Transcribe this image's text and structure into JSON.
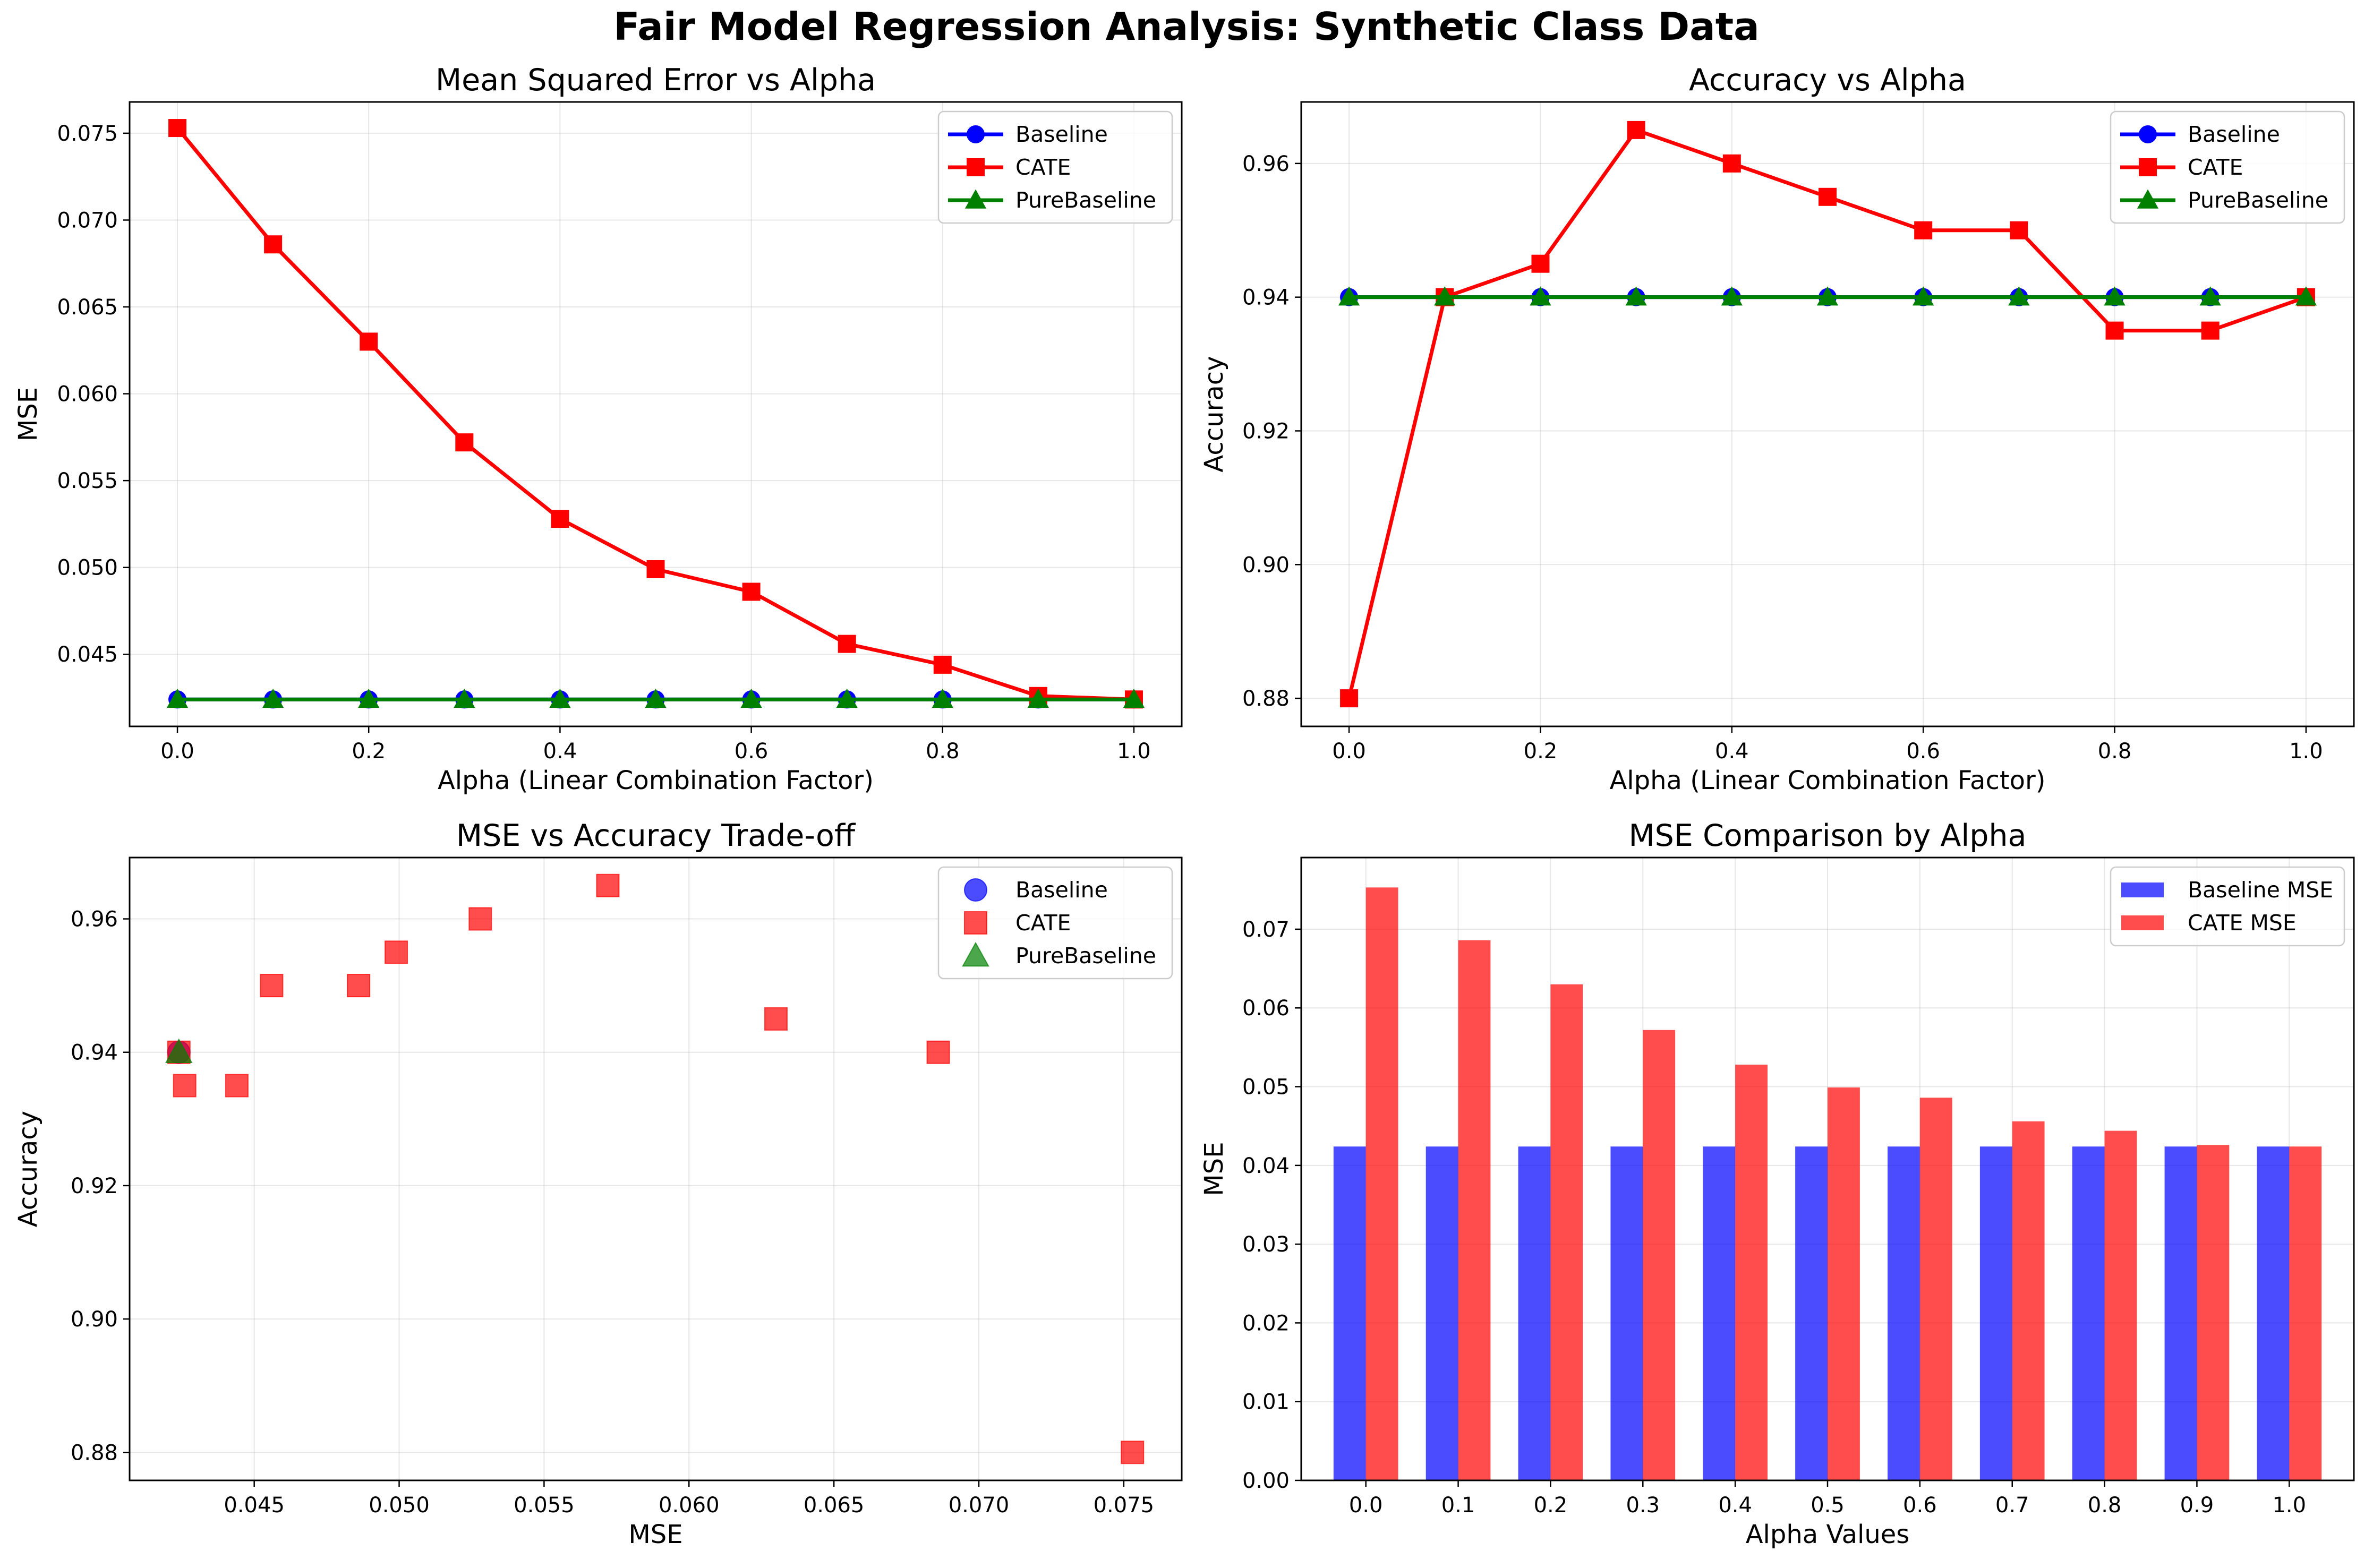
{
  "title": "Fair Model Regression Analysis: Synthetic Class Data",
  "colors": {
    "baseline": "#0000ff",
    "cate": "#ff0000",
    "pure": "#008000"
  },
  "chart_data": [
    {
      "type": "line",
      "title": "Mean Squared Error vs Alpha",
      "xlabel": "Alpha (Linear Combination Factor)",
      "ylabel": "MSE",
      "x": [
        0.0,
        0.1,
        0.2,
        0.3,
        0.4,
        0.5,
        0.6,
        0.7,
        0.8,
        0.9,
        1.0
      ],
      "xlim": [
        -0.05,
        1.05
      ],
      "ylim": [
        0.04085,
        0.0768
      ],
      "xticks": [
        "0.0",
        "0.2",
        "0.4",
        "0.6",
        "0.8",
        "1.0"
      ],
      "yticks": [
        "0.045",
        "0.050",
        "0.055",
        "0.060",
        "0.065",
        "0.070",
        "0.075"
      ],
      "grid": true,
      "legend": "top-right",
      "series": [
        {
          "name": "Baseline",
          "marker": "circle",
          "values": [
            0.0424,
            0.0424,
            0.0424,
            0.0424,
            0.0424,
            0.0424,
            0.0424,
            0.0424,
            0.0424,
            0.0424,
            0.0424
          ]
        },
        {
          "name": "CATE",
          "marker": "square",
          "values": [
            0.0753,
            0.0686,
            0.063,
            0.0572,
            0.0528,
            0.0499,
            0.0486,
            0.0456,
            0.0444,
            0.0426,
            0.0424
          ]
        },
        {
          "name": "PureBaseline",
          "marker": "triangle",
          "values": [
            0.0424,
            0.0424,
            0.0424,
            0.0424,
            0.0424,
            0.0424,
            0.0424,
            0.0424,
            0.0424,
            0.0424,
            0.0424
          ]
        }
      ]
    },
    {
      "type": "line",
      "title": "Accuracy vs Alpha",
      "xlabel": "Alpha (Linear Combination Factor)",
      "ylabel": "Accuracy",
      "x": [
        0.0,
        0.1,
        0.2,
        0.3,
        0.4,
        0.5,
        0.6,
        0.7,
        0.8,
        0.9,
        1.0
      ],
      "xlim": [
        -0.05,
        1.05
      ],
      "ylim": [
        0.8758,
        0.9692
      ],
      "xticks": [
        "0.0",
        "0.2",
        "0.4",
        "0.6",
        "0.8",
        "1.0"
      ],
      "yticks": [
        "0.88",
        "0.90",
        "0.92",
        "0.94",
        "0.96"
      ],
      "grid": true,
      "legend": "top-right",
      "series": [
        {
          "name": "Baseline",
          "marker": "circle",
          "values": [
            0.94,
            0.94,
            0.94,
            0.94,
            0.94,
            0.94,
            0.94,
            0.94,
            0.94,
            0.94,
            0.94
          ]
        },
        {
          "name": "CATE",
          "marker": "square",
          "values": [
            0.88,
            0.94,
            0.945,
            0.965,
            0.96,
            0.955,
            0.95,
            0.95,
            0.935,
            0.935,
            0.94
          ]
        },
        {
          "name": "PureBaseline",
          "marker": "triangle",
          "values": [
            0.94,
            0.94,
            0.94,
            0.94,
            0.94,
            0.94,
            0.94,
            0.94,
            0.94,
            0.94,
            0.94
          ]
        }
      ]
    },
    {
      "type": "scatter",
      "title": "MSE vs Accuracy Trade-off",
      "xlabel": "MSE",
      "ylabel": "Accuracy",
      "xlim": [
        0.0407,
        0.077
      ],
      "ylim": [
        0.8758,
        0.9692
      ],
      "xticks": [
        "0.045",
        "0.050",
        "0.055",
        "0.060",
        "0.065",
        "0.070",
        "0.075"
      ],
      "yticks": [
        "0.88",
        "0.90",
        "0.92",
        "0.94",
        "0.96"
      ],
      "grid": true,
      "legend": "top-right",
      "series": [
        {
          "name": "Baseline",
          "marker": "circle",
          "points": [
            [
              0.0424,
              0.94
            ]
          ]
        },
        {
          "name": "CATE",
          "marker": "square",
          "points": [
            [
              0.0753,
              0.88
            ],
            [
              0.0686,
              0.94
            ],
            [
              0.063,
              0.945
            ],
            [
              0.0572,
              0.965
            ],
            [
              0.0528,
              0.96
            ],
            [
              0.0499,
              0.955
            ],
            [
              0.0486,
              0.95
            ],
            [
              0.0456,
              0.95
            ],
            [
              0.0444,
              0.935
            ],
            [
              0.0426,
              0.935
            ],
            [
              0.0424,
              0.94
            ]
          ]
        },
        {
          "name": "PureBaseline",
          "marker": "triangle",
          "points": [
            [
              0.0424,
              0.94
            ]
          ]
        }
      ]
    },
    {
      "type": "bar",
      "title": "MSE Comparison by Alpha",
      "xlabel": "Alpha Values",
      "ylabel": "MSE",
      "categories": [
        "0.0",
        "0.1",
        "0.2",
        "0.3",
        "0.4",
        "0.5",
        "0.6",
        "0.7",
        "0.8",
        "0.9",
        "1.0"
      ],
      "ylim": [
        0,
        0.0791
      ],
      "yticks": [
        "0.00",
        "0.01",
        "0.02",
        "0.03",
        "0.04",
        "0.05",
        "0.06",
        "0.07"
      ],
      "grid": true,
      "legend": "top-right",
      "series": [
        {
          "name": "Baseline MSE",
          "values": [
            0.0424,
            0.0424,
            0.0424,
            0.0424,
            0.0424,
            0.0424,
            0.0424,
            0.0424,
            0.0424,
            0.0424,
            0.0424
          ]
        },
        {
          "name": "CATE MSE",
          "values": [
            0.0753,
            0.0686,
            0.063,
            0.0572,
            0.0528,
            0.0499,
            0.0486,
            0.0456,
            0.0444,
            0.0426,
            0.0424
          ]
        }
      ]
    }
  ]
}
